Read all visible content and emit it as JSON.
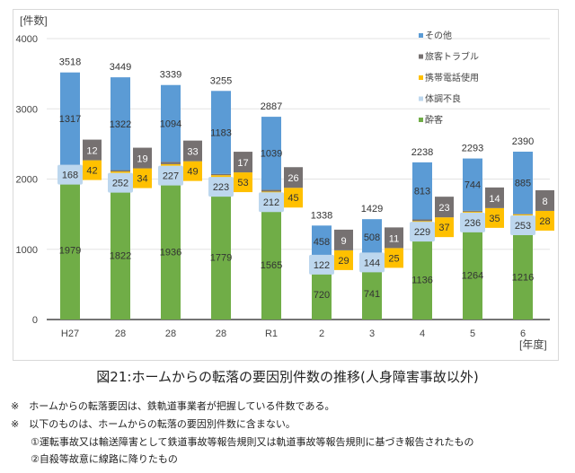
{
  "chart_data": {
    "type": "bar",
    "stacked": true,
    "title": "図21:ホームからの転落の要因別件数の推移(人身障害事故以外)",
    "ylabel": "[件数]",
    "xlabel": "[年度]",
    "ylim": [
      0,
      4000
    ],
    "yticks": [
      0,
      1000,
      2000,
      3000,
      4000
    ],
    "grid": true,
    "legend": "top-right",
    "categories": [
      "H27",
      "28",
      "28",
      "28",
      "R1",
      "2",
      "3",
      "4",
      "5",
      "6"
    ],
    "series": [
      {
        "name": "酔客",
        "color": "#70ad47",
        "values": [
          1979,
          1822,
          1936,
          1779,
          1565,
          720,
          741,
          1136,
          1264,
          1216
        ]
      },
      {
        "name": "体調不良",
        "color": "#bdd7ee",
        "values": [
          168,
          252,
          227,
          223,
          212,
          122,
          144,
          229,
          236,
          253
        ]
      },
      {
        "name": "携帯電話使用",
        "color": "#ffc000",
        "values": [
          42,
          34,
          49,
          53,
          45,
          29,
          25,
          37,
          35,
          28
        ]
      },
      {
        "name": "旅客トラブル",
        "color": "#767171",
        "values": [
          12,
          19,
          33,
          17,
          26,
          9,
          11,
          23,
          14,
          8
        ]
      },
      {
        "name": "その他",
        "color": "#5b9bd5",
        "values": [
          1317,
          1322,
          1094,
          1183,
          1039,
          458,
          508,
          813,
          744,
          885
        ]
      }
    ],
    "totals": [
      3518,
      3449,
      3339,
      3255,
      2887,
      1338,
      1429,
      2238,
      2293,
      2390
    ]
  },
  "notes": [
    "※　ホームからの転落要因は、鉄軌道事業者が把握している件数である。",
    "※　以下のものは、ホームからの転落の要因別件数に含まない。",
    "①運転事故又は輸送障害として鉄道事故等報告規則又は軌道事故等報告規則に基づき報告されたもの",
    "②自殺等故意に線路に降りたもの"
  ]
}
